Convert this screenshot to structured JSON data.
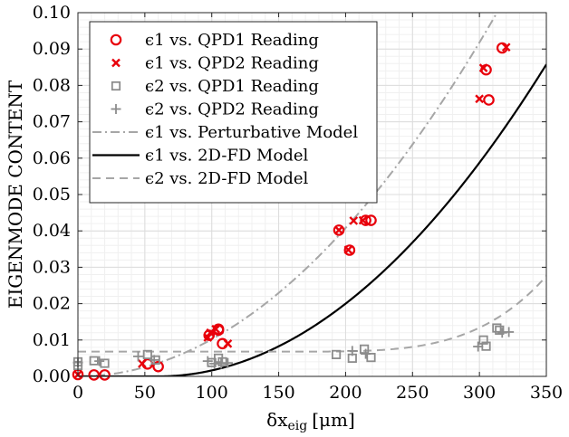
{
  "chart_data": {
    "type": "scatter",
    "xlabel_main": "δx",
    "xlabel_sub": "eig",
    "xlabel_unit": "[μm]",
    "ylabel": "EIGENMODE CONTENT",
    "xlim": [
      0,
      350
    ],
    "ylim": [
      0,
      0.1
    ],
    "xticks": [
      "0",
      "50",
      "100",
      "150",
      "200",
      "250",
      "300",
      "350"
    ],
    "yticks": [
      "0.00",
      "0.01",
      "0.02",
      "0.03",
      "0.04",
      "0.05",
      "0.06",
      "0.07",
      "0.08",
      "0.09",
      "0.10"
    ],
    "grid": true,
    "legend_position": "top-left",
    "series": [
      {
        "name": "ϵ1 vs. QPD1 Reading",
        "marker": "circle",
        "color": "#e8000b",
        "points": [
          [
            0,
            0.0005
          ],
          [
            12,
            0.0004
          ],
          [
            20,
            0.0004
          ],
          [
            52,
            0.0034
          ],
          [
            60,
            0.0027
          ],
          [
            98,
            0.0113
          ],
          [
            105,
            0.0127
          ],
          [
            105,
            0.013
          ],
          [
            108,
            0.009
          ],
          [
            195,
            0.0402
          ],
          [
            203,
            0.0347
          ],
          [
            215,
            0.0429
          ],
          [
            219,
            0.0429
          ],
          [
            305,
            0.0843
          ],
          [
            307,
            0.076
          ],
          [
            317,
            0.0903
          ]
        ]
      },
      {
        "name": "ϵ1 vs. QPD2 Reading",
        "marker": "x",
        "color": "#e8000b",
        "points": [
          [
            0,
            0.0005
          ],
          [
            48,
            0.0035
          ],
          [
            97,
            0.0107
          ],
          [
            99,
            0.012
          ],
          [
            103,
            0.013
          ],
          [
            112,
            0.009
          ],
          [
            195,
            0.0402
          ],
          [
            202,
            0.0348
          ],
          [
            206,
            0.0428
          ],
          [
            213,
            0.0429
          ],
          [
            300,
            0.0763
          ],
          [
            303,
            0.0848
          ],
          [
            320,
            0.0905
          ]
        ]
      },
      {
        "name": "ϵ2 vs. QPD1 Reading",
        "marker": "square",
        "color": "#8c8c8c",
        "points": [
          [
            0,
            0.004
          ],
          [
            0,
            0.003
          ],
          [
            12,
            0.0043
          ],
          [
            20,
            0.0036
          ],
          [
            52,
            0.006
          ],
          [
            58,
            0.0045
          ],
          [
            100,
            0.0038
          ],
          [
            105,
            0.005
          ],
          [
            108,
            0.004
          ],
          [
            193,
            0.006
          ],
          [
            205,
            0.005
          ],
          [
            214,
            0.0075
          ],
          [
            219,
            0.0052
          ],
          [
            303,
            0.01
          ],
          [
            305,
            0.0083
          ],
          [
            313,
            0.0133
          ],
          [
            315,
            0.0127
          ]
        ]
      },
      {
        "name": "ϵ2 vs. QPD2 Reading",
        "marker": "plus",
        "color": "#8c8c8c",
        "points": [
          [
            0,
            0.0038
          ],
          [
            16,
            0.0042
          ],
          [
            45,
            0.0055
          ],
          [
            57,
            0.0045
          ],
          [
            97,
            0.0042
          ],
          [
            102,
            0.0035
          ],
          [
            107,
            0.0035
          ],
          [
            112,
            0.0037
          ],
          [
            205,
            0.007
          ],
          [
            215,
            0.0062
          ],
          [
            299,
            0.0082
          ],
          [
            317,
            0.012
          ],
          [
            322,
            0.0122
          ]
        ]
      },
      {
        "name": "ϵ1 vs. Perturbative Model",
        "line": "dashdot",
        "color": "#a6a6a6",
        "model": {
          "a": 1.02e-06,
          "b": 0,
          "p": 2,
          "offset": 0
        }
      },
      {
        "name": "ϵ1 vs. 2D-FD Model",
        "line": "solid",
        "color": "#000000",
        "model": {
          "a": 1.02e-06,
          "b": 60,
          "p": 2,
          "offset": 0
        }
      },
      {
        "name": "ϵ2 vs. 2D-FD Model",
        "line": "dashed",
        "color": "#a6a6a6",
        "model": {
          "a": 1.3e-11,
          "b": 150,
          "p": 4,
          "offset": 0.0068
        }
      }
    ]
  }
}
